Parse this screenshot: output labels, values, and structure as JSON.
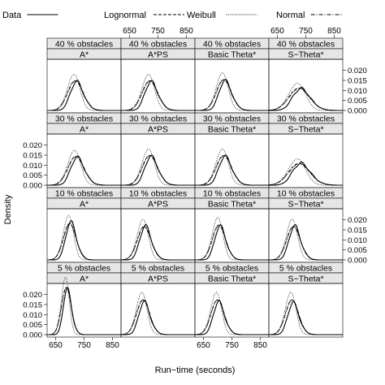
{
  "chart_data": {
    "type": "line",
    "title": "",
    "xlabel": "Run−time (seconds)",
    "ylabel": "Density",
    "xlim": [
      620,
      880
    ],
    "ylim": [
      -0.0012,
      0.0255
    ],
    "x_ticks": [
      650,
      750,
      850
    ],
    "y_ticks": [
      0.0,
      0.005,
      0.01,
      0.015,
      0.02
    ],
    "y_tick_labels": [
      "0.000",
      "0.005",
      "0.010",
      "0.015",
      "0.020"
    ],
    "grid": false,
    "legend_position": "top",
    "legend": [
      {
        "name": "Data",
        "style": "solid"
      },
      {
        "name": "Lognormal",
        "style": "dashed"
      },
      {
        "name": "Weibull",
        "style": "dotted"
      },
      {
        "name": "Normal",
        "style": "dotdash"
      }
    ],
    "rows": [
      {
        "strip": "40 % obstacles"
      },
      {
        "strip": "30 % obstacles"
      },
      {
        "strip": "10 % obstacles"
      },
      {
        "strip": "5 % obstacles"
      }
    ],
    "columns": [
      {
        "strip": "A*"
      },
      {
        "strip": "A*PS"
      },
      {
        "strip": "Basic Theta*"
      },
      {
        "strip": "S−Theta*"
      }
    ],
    "panels": [
      {
        "row": 0,
        "col": 0,
        "mu": 720,
        "sigma": 27,
        "data_peak": 0.0145
      },
      {
        "row": 0,
        "col": 1,
        "mu": 722,
        "sigma": 27,
        "data_peak": 0.0145
      },
      {
        "row": 0,
        "col": 2,
        "mu": 722,
        "sigma": 26,
        "data_peak": 0.015
      },
      {
        "row": 0,
        "col": 3,
        "mu": 728,
        "sigma": 36,
        "data_peak": 0.011
      },
      {
        "row": 1,
        "col": 0,
        "mu": 722,
        "sigma": 28,
        "data_peak": 0.014
      },
      {
        "row": 1,
        "col": 1,
        "mu": 722,
        "sigma": 27,
        "data_peak": 0.0145
      },
      {
        "row": 1,
        "col": 2,
        "mu": 722,
        "sigma": 27,
        "data_peak": 0.0145
      },
      {
        "row": 1,
        "col": 3,
        "mu": 728,
        "sigma": 37,
        "data_peak": 0.011
      },
      {
        "row": 2,
        "col": 0,
        "mu": 700,
        "sigma": 22,
        "data_peak": 0.019
      },
      {
        "row": 2,
        "col": 1,
        "mu": 702,
        "sigma": 24,
        "data_peak": 0.017
      },
      {
        "row": 2,
        "col": 2,
        "mu": 705,
        "sigma": 23,
        "data_peak": 0.017
      },
      {
        "row": 2,
        "col": 3,
        "mu": 707,
        "sigma": 24,
        "data_peak": 0.017
      },
      {
        "row": 3,
        "col": 0,
        "mu": 688,
        "sigma": 17,
        "data_peak": 0.023
      },
      {
        "row": 3,
        "col": 1,
        "mu": 698,
        "sigma": 23,
        "data_peak": 0.0165
      },
      {
        "row": 3,
        "col": 2,
        "mu": 700,
        "sigma": 23,
        "data_peak": 0.0165
      },
      {
        "row": 3,
        "col": 3,
        "mu": 702,
        "sigma": 23,
        "data_peak": 0.016
      }
    ]
  }
}
